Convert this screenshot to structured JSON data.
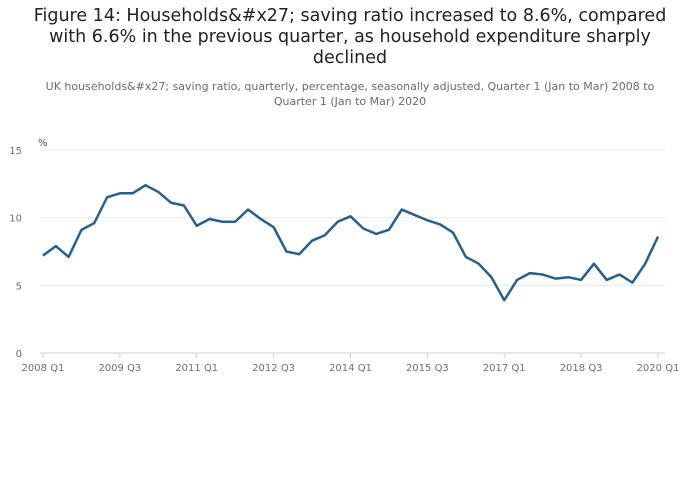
{
  "title": "Figure 14: Households&#x27; saving ratio increased to 8.6%, compared with 6.6% in the previous quarter, as household expenditure sharply declined",
  "subtitle": "UK households&#x27; saving ratio, quarterly, percentage, seasonally adjusted, Quarter 1 (Jan to Mar) 2008 to Quarter 1 (Jan to Mar) 2020",
  "chart_data": {
    "type": "line",
    "ylabel": "%",
    "xlabel": "",
    "ylim": [
      0,
      15
    ],
    "yticks": [
      0,
      5,
      10,
      15
    ],
    "grid": true,
    "line_color": "#27608f",
    "x_tick_labels": [
      "2008 Q1",
      "2009 Q3",
      "2011 Q1",
      "2012 Q3",
      "2014 Q1",
      "2015 Q3",
      "2017 Q1",
      "2018 Q3",
      "2020 Q1"
    ],
    "x": [
      "2008 Q1",
      "2008 Q2",
      "2008 Q3",
      "2008 Q4",
      "2009 Q1",
      "2009 Q2",
      "2009 Q3",
      "2009 Q4",
      "2010 Q1",
      "2010 Q2",
      "2010 Q3",
      "2010 Q4",
      "2011 Q1",
      "2011 Q2",
      "2011 Q3",
      "2011 Q4",
      "2012 Q1",
      "2012 Q2",
      "2012 Q3",
      "2012 Q4",
      "2013 Q1",
      "2013 Q2",
      "2013 Q3",
      "2013 Q4",
      "2014 Q1",
      "2014 Q2",
      "2014 Q3",
      "2014 Q4",
      "2015 Q1",
      "2015 Q2",
      "2015 Q3",
      "2015 Q4",
      "2016 Q1",
      "2016 Q2",
      "2016 Q3",
      "2016 Q4",
      "2017 Q1",
      "2017 Q2",
      "2017 Q3",
      "2017 Q4",
      "2018 Q1",
      "2018 Q2",
      "2018 Q3",
      "2018 Q4",
      "2019 Q1",
      "2019 Q2",
      "2019 Q3",
      "2019 Q4",
      "2020 Q1"
    ],
    "series": [
      {
        "values": [
          7.2,
          7.9,
          7.1,
          9.1,
          9.6,
          11.5,
          11.8,
          11.8,
          12.4,
          11.9,
          11.1,
          10.9,
          9.4,
          9.9,
          9.7,
          9.7,
          10.6,
          9.9,
          9.3,
          7.5,
          7.3,
          8.3,
          8.7,
          9.7,
          10.1,
          9.2,
          8.8,
          9.1,
          10.6,
          10.2,
          9.8,
          9.5,
          8.9,
          7.1,
          6.6,
          5.6,
          3.9,
          5.4,
          5.9,
          5.8,
          5.5,
          5.6,
          5.4,
          6.6,
          5.4,
          5.8,
          5.2,
          6.6,
          8.6
        ]
      }
    ]
  }
}
